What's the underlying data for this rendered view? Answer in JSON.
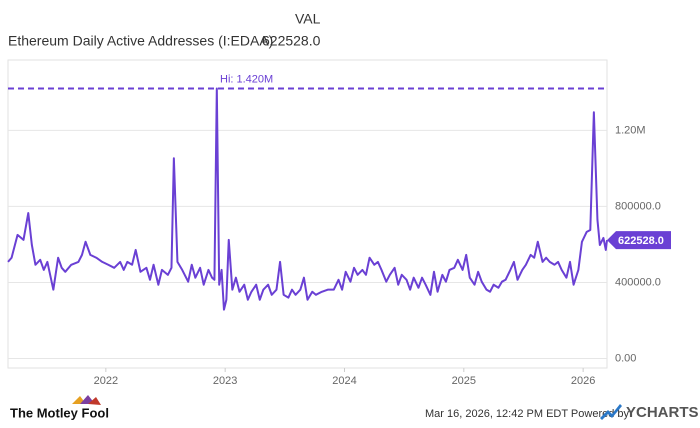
{
  "chart_data": {
    "type": "line",
    "header_label": "VAL",
    "title": "Ethereum Daily Active Addresses (I:EDAA)",
    "last_value": 622528,
    "last_value_label": "622528.0",
    "hi_value": 1420000,
    "hi_label": "Hi: 1.420M",
    "source_logo": "The Motley Fool",
    "timestamp": "Mar 16, 2026, 12:42 PM EDT Powered by",
    "brand": "YCHARTS",
    "color": "#6a40d4",
    "x": [
      2021.18,
      2021.21,
      2021.26,
      2021.31,
      2021.35,
      2021.38,
      2021.41,
      2021.45,
      2021.48,
      2021.51,
      2021.56,
      2021.6,
      2021.63,
      2021.66,
      2021.71,
      2021.77,
      2021.8,
      2021.83,
      2021.87,
      2021.92,
      2021.97,
      2022.02,
      2022.07,
      2022.12,
      2022.15,
      2022.18,
      2022.22,
      2022.25,
      2022.29,
      2022.34,
      2022.37,
      2022.4,
      2022.44,
      2022.47,
      2022.52,
      2022.55,
      2022.57,
      2022.6,
      2022.64,
      2022.69,
      2022.72,
      2022.75,
      2022.79,
      2022.82,
      2022.86,
      2022.89,
      2022.91,
      2022.93,
      2022.95,
      2022.97,
      2022.99,
      2023.01,
      2023.03,
      2023.06,
      2023.09,
      2023.12,
      2023.16,
      2023.19,
      2023.22,
      2023.26,
      2023.29,
      2023.32,
      2023.36,
      2023.39,
      2023.43,
      2023.46,
      2023.49,
      2023.53,
      2023.56,
      2023.59,
      2023.63,
      2023.66,
      2023.69,
      2023.73,
      2023.76,
      2023.81,
      2023.86,
      2023.91,
      2023.95,
      2023.98,
      2024.01,
      2024.05,
      2024.08,
      2024.11,
      2024.15,
      2024.18,
      2024.21,
      2024.25,
      2024.28,
      2024.31,
      2024.35,
      2024.38,
      2024.42,
      2024.45,
      2024.48,
      2024.52,
      2024.55,
      2024.58,
      2024.62,
      2024.65,
      2024.68,
      2024.72,
      2024.75,
      2024.78,
      2024.82,
      2024.85,
      2024.88,
      2024.92,
      2024.95,
      2024.99,
      2025.02,
      2025.05,
      2025.09,
      2025.12,
      2025.15,
      2025.19,
      2025.22,
      2025.25,
      2025.29,
      2025.32,
      2025.35,
      2025.39,
      2025.42,
      2025.45,
      2025.49,
      2025.52,
      2025.56,
      2025.59,
      2025.62,
      2025.66,
      2025.69,
      2025.72,
      2025.76,
      2025.79,
      2025.82,
      2025.86,
      2025.89,
      2025.92,
      2025.96,
      2025.99,
      2026.03,
      2026.06,
      2026.09,
      2026.12,
      2026.14,
      2026.17,
      2026.19,
      2026.2
    ],
    "values": [
      508000,
      530000,
      650000,
      624000,
      765000,
      597000,
      493000,
      519000,
      466000,
      508000,
      362000,
      530000,
      477000,
      456000,
      493000,
      508000,
      545000,
      614000,
      545000,
      530000,
      508000,
      493000,
      477000,
      508000,
      466000,
      508000,
      493000,
      571000,
      456000,
      477000,
      414000,
      493000,
      388000,
      466000,
      440000,
      477000,
      1053000,
      508000,
      466000,
      404000,
      493000,
      425000,
      477000,
      388000,
      466000,
      425000,
      414000,
      1420000,
      388000,
      466000,
      257000,
      309000,
      624000,
      362000,
      425000,
      351000,
      388000,
      309000,
      351000,
      388000,
      309000,
      362000,
      388000,
      335000,
      362000,
      508000,
      335000,
      320000,
      362000,
      335000,
      362000,
      425000,
      309000,
      351000,
      335000,
      351000,
      362000,
      362000,
      414000,
      362000,
      456000,
      404000,
      477000,
      440000,
      466000,
      440000,
      530000,
      493000,
      508000,
      466000,
      404000,
      440000,
      477000,
      388000,
      440000,
      414000,
      362000,
      425000,
      372000,
      425000,
      388000,
      335000,
      456000,
      351000,
      440000,
      404000,
      466000,
      477000,
      519000,
      466000,
      545000,
      425000,
      388000,
      456000,
      404000,
      362000,
      351000,
      388000,
      372000,
      404000,
      414000,
      466000,
      508000,
      414000,
      466000,
      493000,
      545000,
      530000,
      614000,
      508000,
      530000,
      508000,
      493000,
      508000,
      466000,
      425000,
      508000,
      388000,
      466000,
      614000,
      666000,
      676000,
      1295000,
      729000,
      597000,
      634000,
      571000,
      622528
    ],
    "xlim": [
      2021.18,
      2026.2
    ],
    "xticks": [
      2022,
      2023,
      2024,
      2025,
      2026
    ],
    "ylim": [
      -50000,
      1570000
    ],
    "yticks": [
      {
        "value": 0,
        "label": "0.00"
      },
      {
        "value": 400000,
        "label": "400000.0"
      },
      {
        "value": 800000,
        "label": "800000.0"
      },
      {
        "value": 1200000,
        "label": "1.20M"
      }
    ],
    "grid": true
  }
}
